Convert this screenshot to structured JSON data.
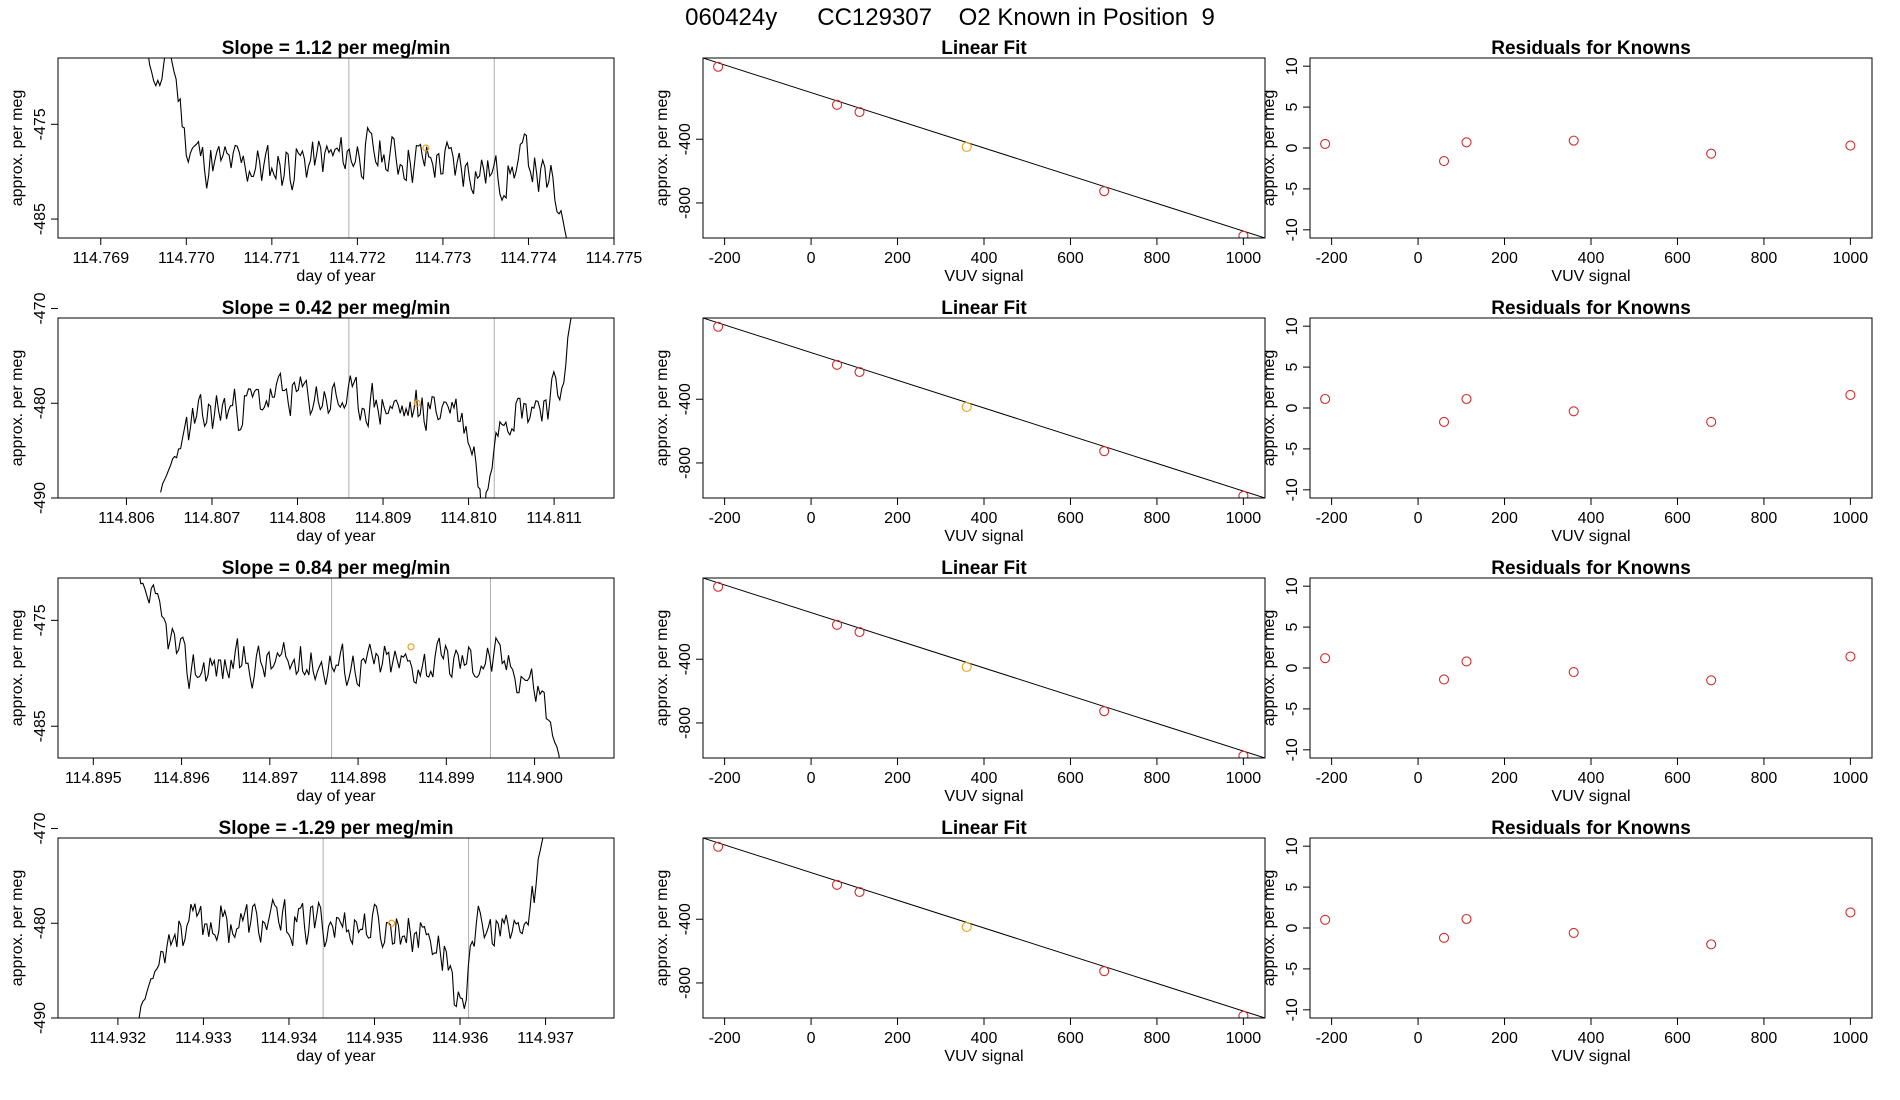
{
  "main_title": "060424y      CC129307    O2 Known in Position  9",
  "colors": {
    "trace": "#000000",
    "known_marker": "#e8a020",
    "fit_point": "#d22b2b",
    "vline": "#b0b0b0",
    "axis": "#000000"
  },
  "chart_data": [
    {
      "type": "line",
      "row": 0,
      "col": 0,
      "title": "Slope =  1.12  per meg/min",
      "xlabel": "day of year",
      "ylabel": "approx. per meg",
      "xlim": [
        114.7685,
        114.775
      ],
      "ylim": [
        -487,
        -468
      ],
      "xticks": [
        114.769,
        114.77,
        114.771,
        114.772,
        114.773,
        114.774,
        114.775
      ],
      "xtick_labels": [
        "114.769",
        "114.770",
        "114.771",
        "114.772",
        "114.773",
        "114.774",
        "114.775"
      ],
      "yticks": [
        -485,
        -475
      ],
      "ytick_labels": [
        "-485",
        "-475"
      ],
      "vlines": [
        114.7719,
        114.7736
      ],
      "known_marker": {
        "x": 114.7728,
        "y": -477.5
      },
      "series": {
        "x_start": 114.7695,
        "x_end": 114.7745,
        "knots": [
          [
            0,
            -463
          ],
          [
            0.02,
            -470
          ],
          [
            0.04,
            -471
          ],
          [
            0.06,
            -466
          ],
          [
            0.1,
            -477
          ],
          [
            0.15,
            -479
          ],
          [
            0.3,
            -479.5
          ],
          [
            0.5,
            -478
          ],
          [
            0.7,
            -479
          ],
          [
            0.85,
            -480.5
          ],
          [
            0.9,
            -478
          ],
          [
            0.93,
            -481
          ],
          [
            0.96,
            -482
          ],
          [
            1.0,
            -488
          ]
        ],
        "amplitude": 3.2,
        "seed": 11
      }
    },
    {
      "type": "line",
      "row": 1,
      "col": 0,
      "title": "Slope =  0.42  per meg/min",
      "xlabel": "day of year",
      "ylabel": "approx. per meg",
      "xlim": [
        114.8052,
        114.8117
      ],
      "ylim": [
        -490,
        -471
      ],
      "xticks": [
        114.806,
        114.807,
        114.808,
        114.809,
        114.81,
        114.811
      ],
      "xtick_labels": [
        "114.806",
        "114.807",
        "114.808",
        "114.809",
        "114.810",
        "114.811"
      ],
      "yticks": [
        -490,
        -480,
        -470
      ],
      "ytick_labels": [
        "-490",
        "-480",
        "-470"
      ],
      "vlines": [
        114.8086,
        114.8103
      ],
      "known_marker": {
        "x": 114.8094,
        "y": -480
      },
      "series": {
        "x_start": 114.8064,
        "x_end": 114.8113,
        "knots": [
          [
            0,
            -490
          ],
          [
            0.02,
            -487
          ],
          [
            0.06,
            -483
          ],
          [
            0.12,
            -481
          ],
          [
            0.3,
            -479
          ],
          [
            0.5,
            -480
          ],
          [
            0.6,
            -481
          ],
          [
            0.7,
            -480
          ],
          [
            0.75,
            -485
          ],
          [
            0.77,
            -493
          ],
          [
            0.8,
            -481
          ],
          [
            0.9,
            -480
          ],
          [
            0.95,
            -479
          ],
          [
            1.0,
            -466
          ]
        ],
        "amplitude": 3.0,
        "seed": 23
      }
    },
    {
      "type": "line",
      "row": 2,
      "col": 0,
      "title": "Slope =  0.84  per meg/min",
      "xlabel": "day of year",
      "ylabel": "approx. per meg",
      "xlim": [
        114.8946,
        114.9009
      ],
      "ylim": [
        -488,
        -471
      ],
      "xticks": [
        114.895,
        114.896,
        114.897,
        114.898,
        114.899,
        114.9
      ],
      "xtick_labels": [
        "114.895",
        "114.896",
        "114.897",
        "114.898",
        "114.899",
        "114.900"
      ],
      "yticks": [
        -485,
        -475
      ],
      "ytick_labels": [
        "-485",
        "-475"
      ],
      "vlines": [
        114.8977,
        114.8995
      ],
      "known_marker": {
        "x": 114.8986,
        "y": -477.5
      },
      "series": {
        "x_start": 114.8953,
        "x_end": 114.9003,
        "knots": [
          [
            0,
            -466
          ],
          [
            0.03,
            -470
          ],
          [
            0.08,
            -474
          ],
          [
            0.12,
            -477
          ],
          [
            0.15,
            -479.5
          ],
          [
            0.3,
            -479
          ],
          [
            0.5,
            -479
          ],
          [
            0.7,
            -479
          ],
          [
            0.85,
            -478.5
          ],
          [
            0.92,
            -480
          ],
          [
            0.96,
            -482
          ],
          [
            1.0,
            -489
          ]
        ],
        "amplitude": 2.6,
        "seed": 37
      }
    },
    {
      "type": "line",
      "row": 3,
      "col": 0,
      "title": "Slope =  -1.29  per meg/min",
      "xlabel": "day of year",
      "ylabel": "approx. per meg",
      "xlim": [
        114.9313,
        114.9378
      ],
      "ylim": [
        -490,
        -471
      ],
      "xticks": [
        114.932,
        114.933,
        114.934,
        114.935,
        114.936,
        114.937
      ],
      "xtick_labels": [
        "114.932",
        "114.933",
        "114.934",
        "114.935",
        "114.936",
        "114.937"
      ],
      "yticks": [
        -490,
        -480,
        -470
      ],
      "ytick_labels": [
        "-490",
        "-480",
        "-470"
      ],
      "vlines": [
        114.9344,
        114.9361
      ],
      "known_marker": {
        "x": 114.9352,
        "y": -480
      },
      "series": {
        "x_start": 114.9322,
        "x_end": 114.9371,
        "knots": [
          [
            0,
            -491
          ],
          [
            0.03,
            -487
          ],
          [
            0.07,
            -482
          ],
          [
            0.12,
            -480
          ],
          [
            0.3,
            -480
          ],
          [
            0.5,
            -480
          ],
          [
            0.6,
            -480.5
          ],
          [
            0.7,
            -481
          ],
          [
            0.75,
            -484
          ],
          [
            0.78,
            -491
          ],
          [
            0.8,
            -481
          ],
          [
            0.9,
            -481
          ],
          [
            0.94,
            -480
          ],
          [
            1.0,
            -464
          ]
        ],
        "amplitude": 3.0,
        "seed": 53
      }
    },
    {
      "type": "scatter",
      "row": 0,
      "col": 1,
      "title": "Linear Fit",
      "xlabel": "VUV signal",
      "ylabel": "approx. per meg",
      "xlim": [
        -250,
        1050
      ],
      "ylim": [
        -1020,
        110
      ],
      "xticks": [
        -200,
        0,
        200,
        400,
        600,
        800,
        1000
      ],
      "xtick_labels": [
        "-200",
        "0",
        "200",
        "400",
        "600",
        "800",
        "1000"
      ],
      "yticks": [
        -800,
        -400
      ],
      "ytick_labels": [
        "-800",
        "-400"
      ],
      "fit_line": [
        [
          -250,
          110
        ],
        [
          1050,
          -1020
        ]
      ],
      "points": {
        "x": [
          -215,
          60,
          112,
          360,
          678,
          1000
        ],
        "y": [
          55,
          -184,
          -229,
          -448,
          -726,
          -1006
        ]
      },
      "known_index": 3
    },
    {
      "type": "scatter",
      "row": 1,
      "col": 1,
      "title": "Linear Fit",
      "xlabel": "VUV signal",
      "ylabel": "approx. per meg",
      "xlim": [
        -250,
        1050
      ],
      "ylim": [
        -1020,
        110
      ],
      "xticks": [
        -200,
        0,
        200,
        400,
        600,
        800,
        1000
      ],
      "xtick_labels": [
        "-200",
        "0",
        "200",
        "400",
        "600",
        "800",
        "1000"
      ],
      "yticks": [
        -800,
        -400
      ],
      "ytick_labels": [
        "-800",
        "-400"
      ],
      "fit_line": [
        [
          -250,
          110
        ],
        [
          1050,
          -1020
        ]
      ],
      "points": {
        "x": [
          -215,
          60,
          112,
          360,
          678,
          1000
        ],
        "y": [
          55,
          -184,
          -229,
          -448,
          -726,
          -1006
        ]
      },
      "known_index": 3
    },
    {
      "type": "scatter",
      "row": 2,
      "col": 1,
      "title": "Linear Fit",
      "xlabel": "VUV signal",
      "ylabel": "approx. per meg",
      "xlim": [
        -250,
        1050
      ],
      "ylim": [
        -1020,
        110
      ],
      "xticks": [
        -200,
        0,
        200,
        400,
        600,
        800,
        1000
      ],
      "xtick_labels": [
        "-200",
        "0",
        "200",
        "400",
        "600",
        "800",
        "1000"
      ],
      "yticks": [
        -800,
        -400
      ],
      "ytick_labels": [
        "-800",
        "-400"
      ],
      "fit_line": [
        [
          -250,
          110
        ],
        [
          1050,
          -1020
        ]
      ],
      "points": {
        "x": [
          -215,
          60,
          112,
          360,
          678,
          1000
        ],
        "y": [
          55,
          -184,
          -229,
          -448,
          -726,
          -1006
        ]
      },
      "known_index": 3
    },
    {
      "type": "scatter",
      "row": 3,
      "col": 1,
      "title": "Linear Fit",
      "xlabel": "VUV signal",
      "ylabel": "approx. per meg",
      "xlim": [
        -250,
        1050
      ],
      "ylim": [
        -1020,
        110
      ],
      "xticks": [
        -200,
        0,
        200,
        400,
        600,
        800,
        1000
      ],
      "xtick_labels": [
        "-200",
        "0",
        "200",
        "400",
        "600",
        "800",
        "1000"
      ],
      "yticks": [
        -800,
        -400
      ],
      "ytick_labels": [
        "-800",
        "-400"
      ],
      "fit_line": [
        [
          -250,
          110
        ],
        [
          1050,
          -1020
        ]
      ],
      "points": {
        "x": [
          -215,
          60,
          112,
          360,
          678,
          1000
        ],
        "y": [
          55,
          -184,
          -229,
          -448,
          -726,
          -1006
        ]
      },
      "known_index": 3
    },
    {
      "type": "scatter",
      "row": 0,
      "col": 2,
      "title": "Residuals for Knowns",
      "xlabel": "VUV signal",
      "ylabel": "approx. per meg",
      "xlim": [
        -250,
        1050
      ],
      "ylim": [
        -11,
        11
      ],
      "xticks": [
        -200,
        0,
        200,
        400,
        600,
        800,
        1000
      ],
      "xtick_labels": [
        "-200",
        "0",
        "200",
        "400",
        "600",
        "800",
        "1000"
      ],
      "yticks": [
        -10,
        -5,
        0,
        5,
        10
      ],
      "ytick_labels": [
        "-10",
        "-5",
        "0",
        "5",
        "10"
      ],
      "points": {
        "x": [
          -215,
          60,
          112,
          360,
          678,
          1000
        ],
        "y": [
          0.5,
          -1.6,
          0.7,
          0.9,
          -0.7,
          0.3
        ]
      }
    },
    {
      "type": "scatter",
      "row": 1,
      "col": 2,
      "title": "Residuals for Knowns",
      "xlabel": "VUV signal",
      "ylabel": "approx. per meg",
      "xlim": [
        -250,
        1050
      ],
      "ylim": [
        -11,
        11
      ],
      "xticks": [
        -200,
        0,
        200,
        400,
        600,
        800,
        1000
      ],
      "xtick_labels": [
        "-200",
        "0",
        "200",
        "400",
        "600",
        "800",
        "1000"
      ],
      "yticks": [
        -10,
        -5,
        0,
        5,
        10
      ],
      "ytick_labels": [
        "-10",
        "-5",
        "0",
        "5",
        "10"
      ],
      "points": {
        "x": [
          -215,
          60,
          112,
          360,
          678,
          1000
        ],
        "y": [
          1.1,
          -1.7,
          1.1,
          -0.4,
          -1.7,
          1.6
        ]
      }
    },
    {
      "type": "scatter",
      "row": 2,
      "col": 2,
      "title": "Residuals for Knowns",
      "xlabel": "VUV signal",
      "ylabel": "approx. per meg",
      "xlim": [
        -250,
        1050
      ],
      "ylim": [
        -11,
        11
      ],
      "xticks": [
        -200,
        0,
        200,
        400,
        600,
        800,
        1000
      ],
      "xtick_labels": [
        "-200",
        "0",
        "200",
        "400",
        "600",
        "800",
        "1000"
      ],
      "yticks": [
        -10,
        -5,
        0,
        5,
        10
      ],
      "ytick_labels": [
        "-10",
        "-5",
        "0",
        "5",
        "10"
      ],
      "points": {
        "x": [
          -215,
          60,
          112,
          360,
          678,
          1000
        ],
        "y": [
          1.2,
          -1.4,
          0.8,
          -0.5,
          -1.5,
          1.4
        ]
      }
    },
    {
      "type": "scatter",
      "row": 3,
      "col": 2,
      "title": "Residuals for Knowns",
      "xlabel": "VUV signal",
      "ylabel": "approx. per meg",
      "xlim": [
        -250,
        1050
      ],
      "ylim": [
        -11,
        11
      ],
      "xticks": [
        -200,
        0,
        200,
        400,
        600,
        800,
        1000
      ],
      "xtick_labels": [
        "-200",
        "0",
        "200",
        "400",
        "600",
        "800",
        "1000"
      ],
      "yticks": [
        -10,
        -5,
        0,
        5,
        10
      ],
      "ytick_labels": [
        "-10",
        "-5",
        "0",
        "5",
        "10"
      ],
      "points": {
        "x": [
          -215,
          60,
          112,
          360,
          678,
          1000
        ],
        "y": [
          1.0,
          -1.2,
          1.1,
          -0.6,
          -2.0,
          1.9
        ]
      }
    }
  ]
}
